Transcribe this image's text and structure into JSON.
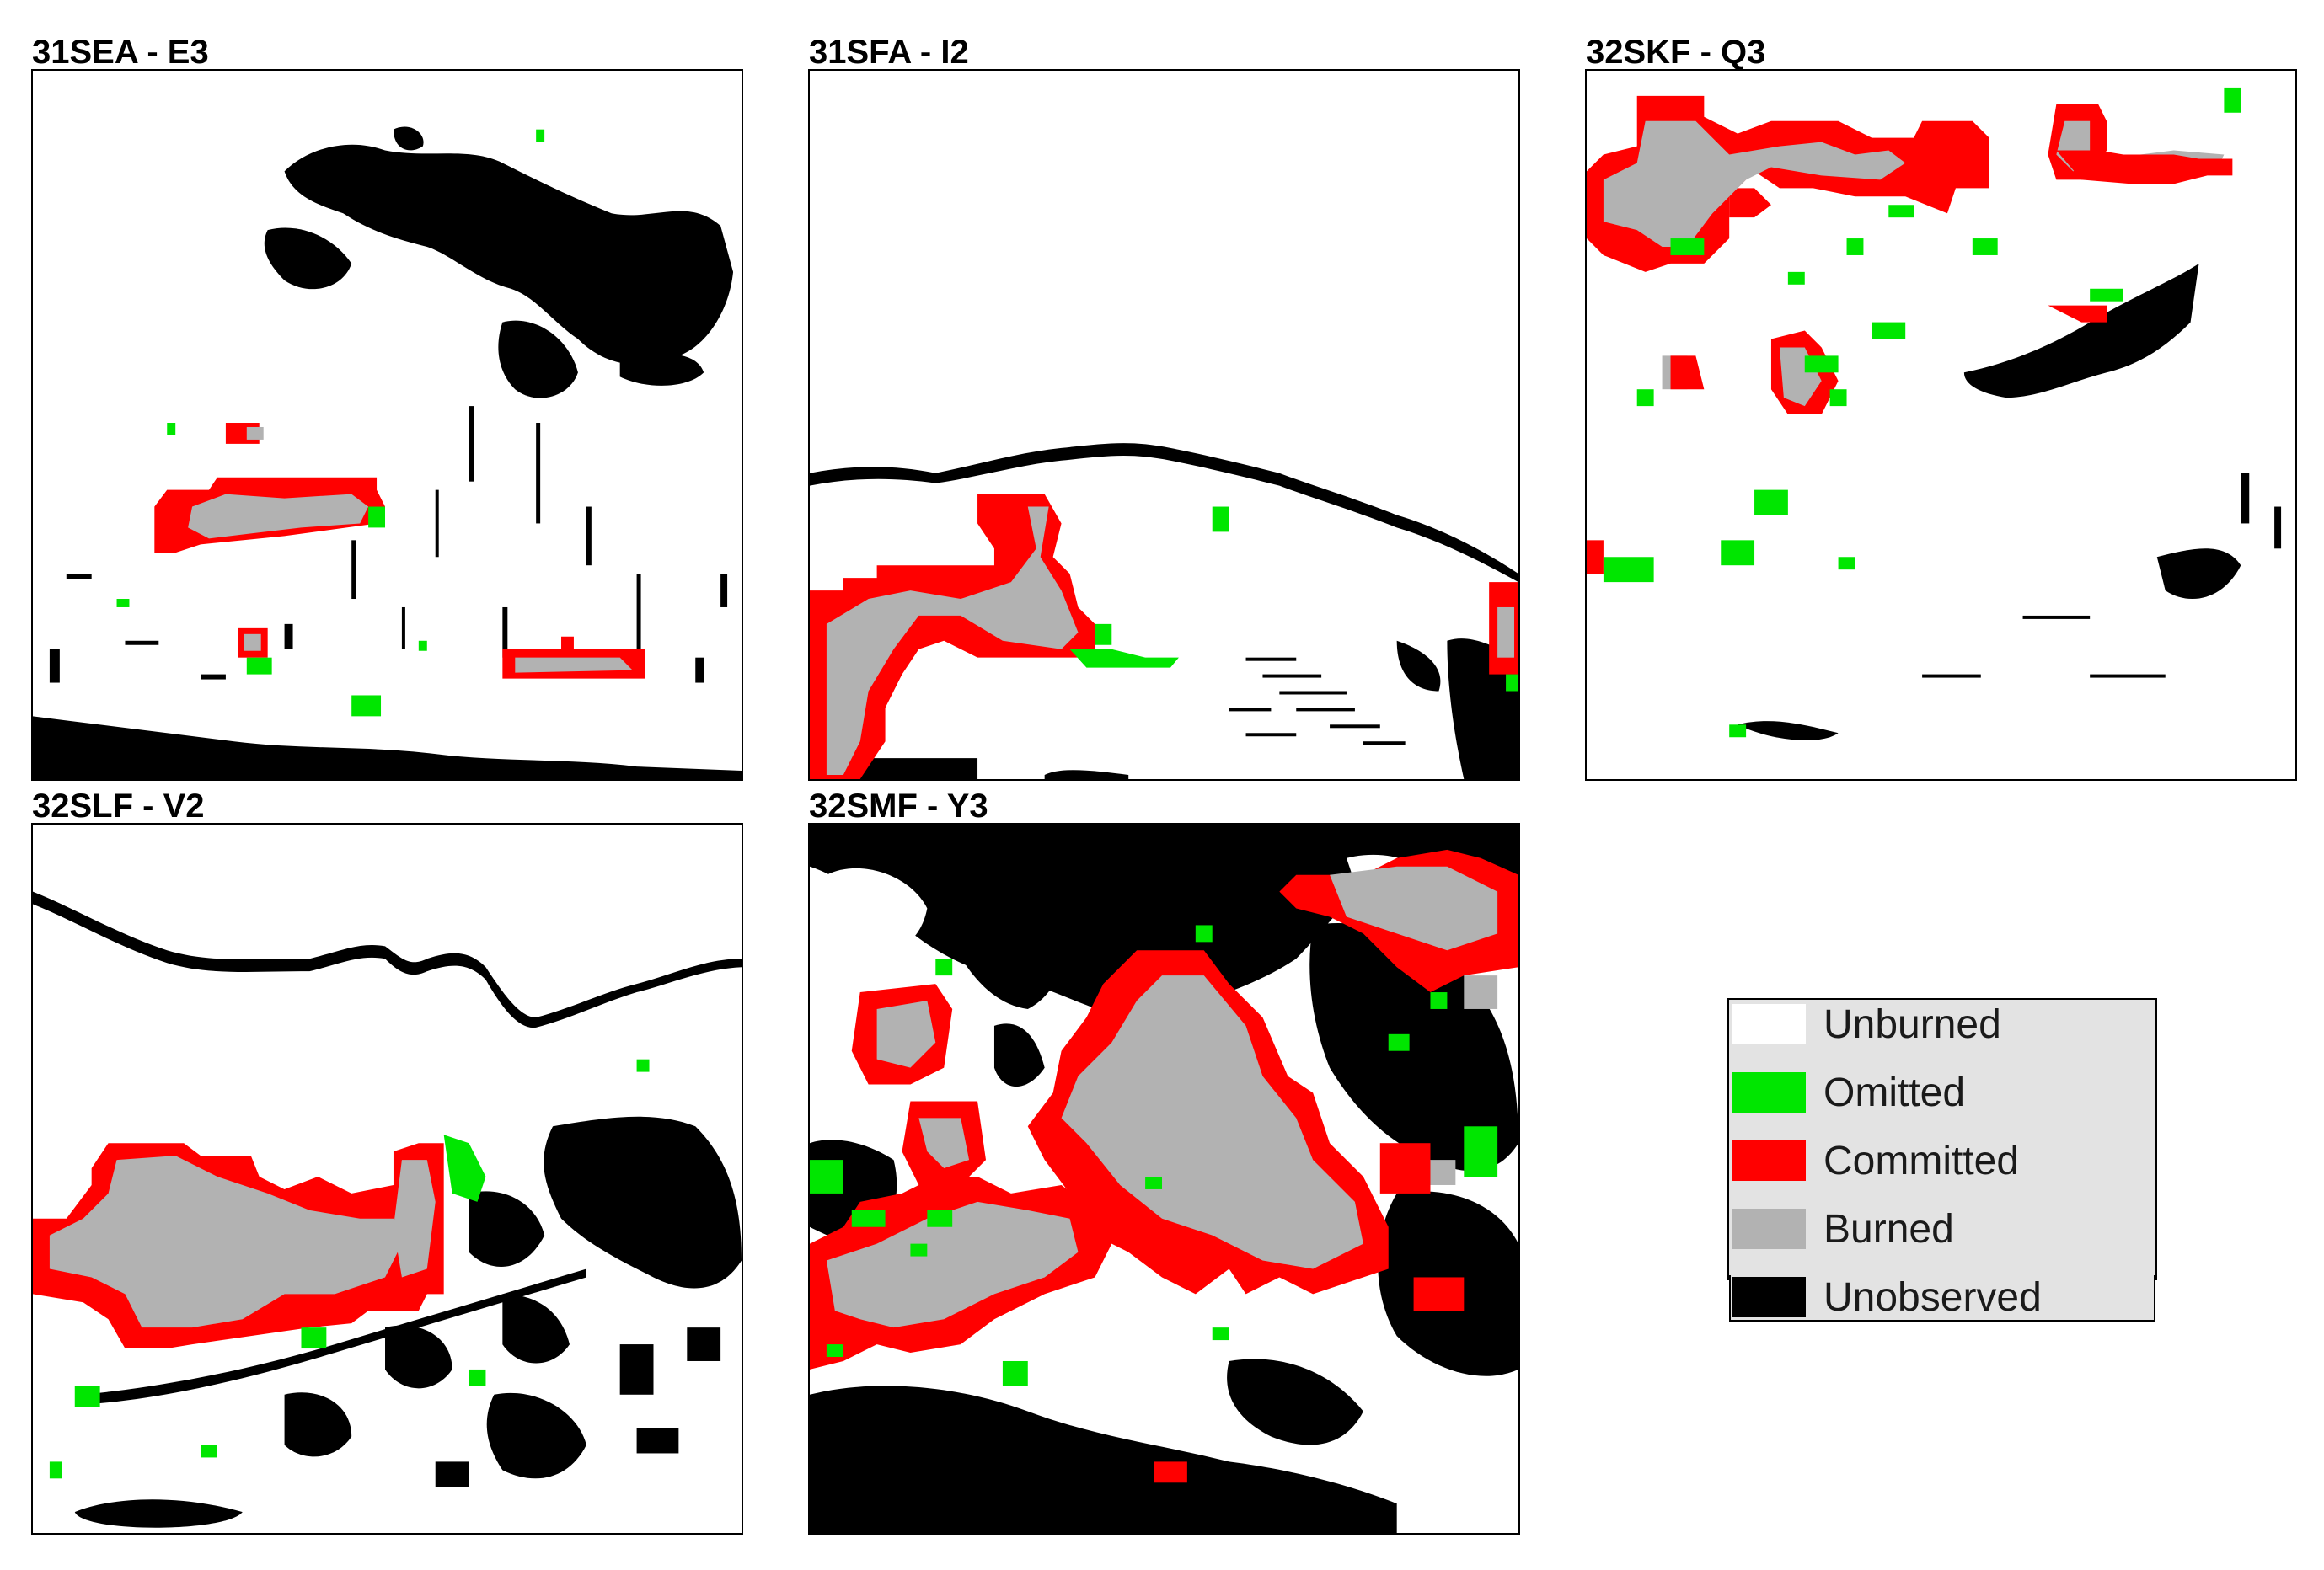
{
  "panels": [
    {
      "id": "p1",
      "title": "31SEA - E3"
    },
    {
      "id": "p2",
      "title": "31SFA - I2"
    },
    {
      "id": "p3",
      "title": "32SKF - Q3"
    },
    {
      "id": "p4",
      "title": "32SLF - V2"
    },
    {
      "id": "p5",
      "title": "32SMF - Y3"
    }
  ],
  "legend": {
    "items": [
      {
        "label": "Unburned",
        "color": "#ffffff"
      },
      {
        "label": "Omitted",
        "color": "#00e600"
      },
      {
        "label": "Committed",
        "color": "#ff0000"
      },
      {
        "label": "Burned",
        "color": "#b2b2b2"
      },
      {
        "label": "Unobserved",
        "color": "#000000"
      }
    ]
  }
}
